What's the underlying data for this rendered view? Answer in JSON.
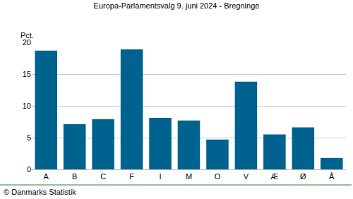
{
  "chart_data": {
    "type": "bar",
    "title": "Europa-Parlamentsvalg 9. juni 2024 - Bregninge",
    "ylabel": "Pct.",
    "categories": [
      "A",
      "B",
      "C",
      "F",
      "I",
      "M",
      "O",
      "V",
      "Æ",
      "Ø",
      "Å"
    ],
    "values": [
      18.7,
      7.1,
      7.9,
      18.9,
      8.1,
      7.7,
      4.7,
      13.8,
      5.5,
      6.6,
      1.8
    ],
    "color": "#00628f",
    "ylim": [
      0,
      20
    ],
    "yticks": [
      0,
      5,
      10,
      15,
      20
    ],
    "grid": true,
    "annotations": [
      {
        "text": "© Danmarks Statistik"
      }
    ]
  }
}
